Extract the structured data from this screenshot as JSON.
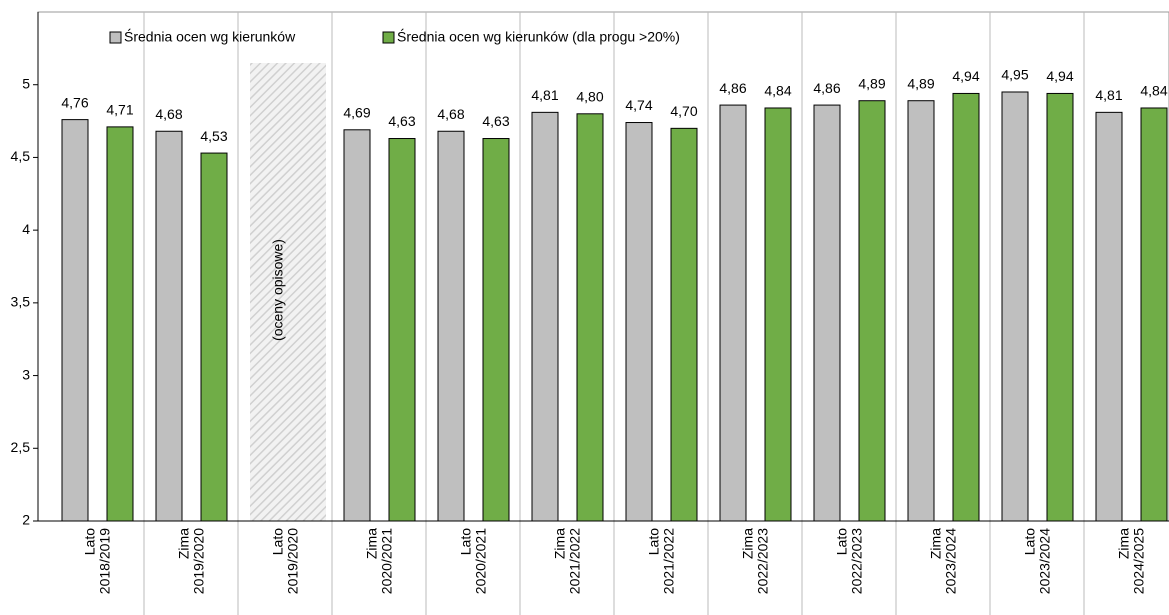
{
  "chart_data": {
    "type": "bar",
    "categories": [
      [
        "Lato",
        "2018/2019"
      ],
      [
        "Zima",
        "2019/2020"
      ],
      [
        "Lato",
        "2019/2020"
      ],
      [
        "Zima",
        "2020/2021"
      ],
      [
        "Lato",
        "2020/2021"
      ],
      [
        "Zima",
        "2021/2022"
      ],
      [
        "Lato",
        "2021/2022"
      ],
      [
        "Zima",
        "2022/2023"
      ],
      [
        "Lato",
        "2022/2023"
      ],
      [
        "Zima",
        "2023/2024"
      ],
      [
        "Lato",
        "2023/2024"
      ],
      [
        "Zima",
        "2024/2025"
      ]
    ],
    "series": [
      {
        "name": "Średnia ocen wg kierunków",
        "color": "#bfbfbf",
        "values": [
          4.76,
          4.68,
          null,
          4.69,
          4.68,
          4.81,
          4.74,
          4.86,
          4.86,
          4.89,
          4.95,
          4.81
        ],
        "value_labels": [
          "4,76",
          "4,68",
          null,
          "4,69",
          "4,68",
          "4,81",
          "4,74",
          "4,86",
          "4,86",
          "4,89",
          "4,95",
          "4,81"
        ]
      },
      {
        "name": "Średnia ocen wg kierunków (dla progu >20%)",
        "color": "#70ad47",
        "values": [
          4.71,
          4.53,
          null,
          4.63,
          4.63,
          4.8,
          4.7,
          4.84,
          4.89,
          4.94,
          4.94,
          4.84
        ],
        "value_labels": [
          "4,71",
          "4,53",
          null,
          "4,63",
          "4,63",
          "4,80",
          "4,70",
          "4,84",
          "4,89",
          "4,94",
          "4,94",
          "4,84"
        ]
      }
    ],
    "annotation": "(oceny opisowe)",
    "ylim": [
      2,
      5.5
    ],
    "yticks": [
      2,
      {
        "value": 2.5,
        "label": "2,5"
      },
      3,
      {
        "value": 3.5,
        "label": "3,5"
      },
      4,
      {
        "value": 4.5,
        "label": "4,5"
      },
      5
    ],
    "legend": "top"
  }
}
